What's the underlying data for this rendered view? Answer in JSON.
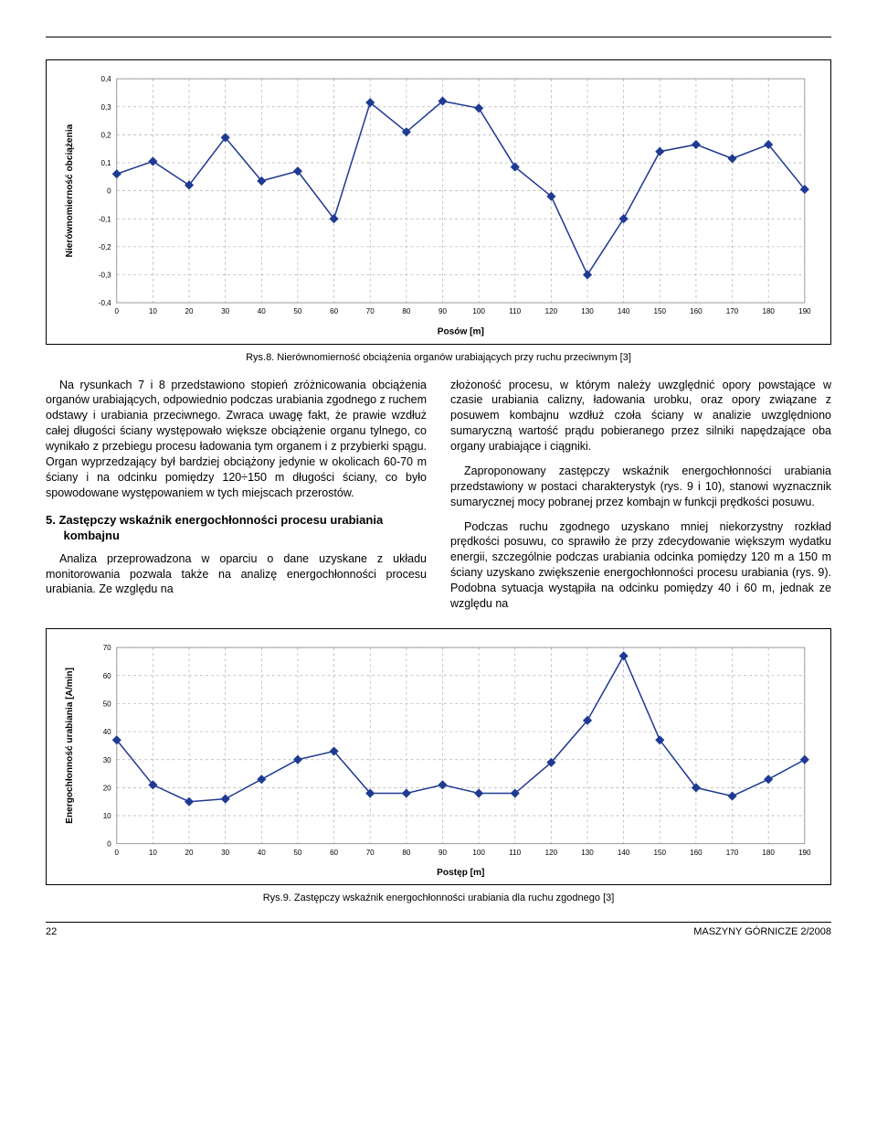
{
  "chart1": {
    "type": "line",
    "ylabel": "Nierównomierność obciążenia",
    "xlabel": "Posów [m]",
    "xticks": [
      0,
      10,
      20,
      30,
      40,
      50,
      60,
      70,
      80,
      90,
      100,
      110,
      120,
      130,
      140,
      150,
      160,
      170,
      180,
      190
    ],
    "yticks": [
      -0.4,
      -0.3,
      -0.2,
      -0.1,
      0,
      0.1,
      0.2,
      0.3,
      0.4
    ],
    "ytick_labels": [
      "-0,4",
      "-0,3",
      "-0,2",
      "-0,1",
      "0",
      "0,1",
      "0,2",
      "0,3",
      "0,4"
    ],
    "xlim": [
      0,
      190
    ],
    "ylim": [
      -0.4,
      0.4
    ],
    "line_color": "#1f3a93",
    "marker_color": "#1f3a93",
    "marker_shape": "diamond",
    "marker_size": 5,
    "line_width": 1.5,
    "background_color": "#ffffff",
    "grid_color": "#b0b0b0",
    "grid_dash": "3,3",
    "axis_fontsize": 8,
    "label_fontsize": 10,
    "x": [
      0,
      10,
      20,
      30,
      40,
      50,
      60,
      70,
      80,
      90,
      100,
      110,
      120,
      130,
      140,
      150,
      160,
      170,
      180,
      190
    ],
    "y": [
      0.06,
      0.105,
      0.02,
      0.19,
      0.035,
      0.07,
      -0.1,
      0.315,
      0.21,
      0.32,
      0.295,
      0.085,
      -0.02,
      -0.3,
      -0.1,
      0.14,
      0.165,
      0.115,
      0.165,
      0.005
    ]
  },
  "chart1_caption": "Rys.8. Nierównomierność obciążenia organów urabiających przy ruchu przeciwnym [3]",
  "col_left": {
    "p1": "Na rysunkach 7 i 8 przedstawiono stopień zróżnicowania obciążenia organów urabiających, odpowiednio podczas urabiania zgodnego z ruchem odstawy i urabiania przeciwnego. Zwraca uwagę fakt, że prawie wzdłuż całej długości ściany występowało większe obciążenie organu tylnego, co wynikało z przebiegu procesu ładowania tym organem i z przybierki spągu. Organ wyprzedzający był bardziej obciążony jedynie w okolicach 60-70 m ściany i na odcinku pomiędzy 120÷150 m długości ściany, co było spowodowane występowaniem w tych miejscach przerostów.",
    "h5": "5.  Zastępczy wskaźnik energochłonności procesu urabiania kombajnu",
    "p2": "Analiza przeprowadzona w oparciu o dane uzyskane z układu monitorowania pozwala także na analizę energochłonności procesu urabiania. Ze względu na"
  },
  "col_right": {
    "p1": "złożoność procesu, w którym należy uwzględnić opory powstające w czasie urabiania calizny, ładowania urobku, oraz opory związane z posuwem kombajnu wzdłuż czoła ściany w analizie uwzględniono sumaryczną wartość prądu pobieranego przez silniki napędzające oba organy urabiające i ciągniki.",
    "p2": "Zaproponowany zastępczy wskaźnik energochłonności urabiania przedstawiony w postaci charakterystyk (rys. 9 i 10), stanowi wyznacznik sumarycznej mocy pobranej przez kombajn w funkcji prędkości posuwu.",
    "p3": "Podczas ruchu zgodnego uzyskano mniej niekorzystny rozkład prędkości posuwu, co sprawiło że przy zdecydowanie większym wydatku energii, szczególnie podczas urabiania odcinka pomiędzy 120 m a 150 m ściany uzyskano zwiększenie energochłonności procesu urabiania (rys. 9). Podobna sytuacja wystąpiła na odcinku pomiędzy 40 i 60 m, jednak ze względu na"
  },
  "chart2": {
    "type": "line",
    "ylabel": "Energochłonność urabiania [A/min]",
    "xlabel": "Postęp [m]",
    "xticks": [
      0,
      10,
      20,
      30,
      40,
      50,
      60,
      70,
      80,
      90,
      100,
      110,
      120,
      130,
      140,
      150,
      160,
      170,
      180,
      190
    ],
    "yticks": [
      0,
      10,
      20,
      30,
      40,
      50,
      60,
      70
    ],
    "xlim": [
      0,
      190
    ],
    "ylim": [
      0,
      70
    ],
    "line_color": "#1f3a93",
    "marker_color": "#1f3a93",
    "marker_shape": "diamond",
    "marker_size": 5,
    "line_width": 1.5,
    "background_color": "#ffffff",
    "grid_color": "#b0b0b0",
    "grid_dash": "3,3",
    "axis_fontsize": 8,
    "label_fontsize": 10,
    "x": [
      0,
      10,
      20,
      30,
      40,
      50,
      60,
      70,
      80,
      90,
      100,
      110,
      120,
      130,
      140,
      150,
      160,
      170,
      180,
      190
    ],
    "y": [
      37,
      21,
      15,
      16,
      23,
      30,
      33,
      18,
      18,
      21,
      18,
      18,
      29,
      44,
      67,
      37,
      20,
      17,
      23,
      30
    ]
  },
  "chart2_caption": "Rys.9. Zastępczy wskaźnik energochłonności urabiania dla ruchu zgodnego [3]",
  "footer": {
    "page": "22",
    "journal": "MASZYNY GÓRNICZE 2/2008"
  }
}
